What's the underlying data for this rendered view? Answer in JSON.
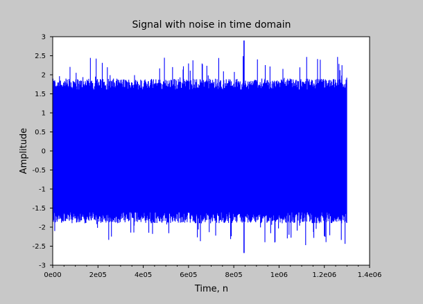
{
  "chart_data": {
    "type": "line",
    "title": "Signal with noise in time domain",
    "xlabel": "Time, n",
    "ylabel": "Amplitude",
    "xlim": [
      0,
      1400000
    ],
    "ylim": [
      -3,
      3
    ],
    "grid": false,
    "line_color": "#0000ff",
    "background_color": "#c8c8c8",
    "plot_area_color": "#ffffff",
    "x_ticks": [
      {
        "value": 0,
        "label": "0e00"
      },
      {
        "value": 200000,
        "label": "2e05"
      },
      {
        "value": 400000,
        "label": "4e05"
      },
      {
        "value": 600000,
        "label": "6e05"
      },
      {
        "value": 800000,
        "label": "8e05"
      },
      {
        "value": 1000000,
        "label": "1e06"
      },
      {
        "value": 1200000,
        "label": "1.2e06"
      },
      {
        "value": 1400000,
        "label": "1.4e06"
      }
    ],
    "y_ticks": [
      {
        "value": 3,
        "label": "3"
      },
      {
        "value": 2.5,
        "label": "2.5"
      },
      {
        "value": 2,
        "label": "2"
      },
      {
        "value": 1.5,
        "label": "1.5"
      },
      {
        "value": 1,
        "label": "1"
      },
      {
        "value": 0.5,
        "label": "0.5"
      },
      {
        "value": 0,
        "label": "0"
      },
      {
        "value": -0.5,
        "label": "-0.5"
      },
      {
        "value": -1,
        "label": "-1"
      },
      {
        "value": -1.5,
        "label": "-1.5"
      },
      {
        "value": -2,
        "label": "-2"
      },
      {
        "value": -2.5,
        "label": "-2.5"
      },
      {
        "value": -3,
        "label": "-3"
      }
    ],
    "series": [
      {
        "x_range": [
          0,
          1300000
        ],
        "dense_band": [
          -1.9,
          1.9
        ],
        "typical_peak_range": [
          1.75,
          2.5
        ],
        "max": 2.9,
        "max_at": 845000,
        "min": -2.68,
        "min_at": 845000
      }
    ]
  }
}
